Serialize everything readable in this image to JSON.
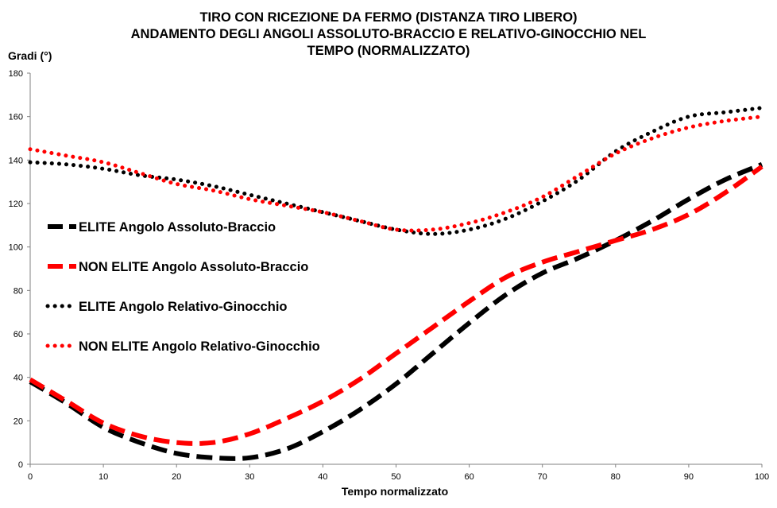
{
  "title_lines": [
    "TIRO CON RICEZIONE DA FERMO (DISTANZA TIRO LIBERO)",
    "ANDAMENTO DEGLI ANGOLI ASSOLUTO-BRACCIO E RELATIVO-GINOCCHIO NEL",
    "TEMPO (NORMALIZZATO)"
  ],
  "chart_data": {
    "type": "line",
    "title": "TIRO CON RICEZIONE DA FERMO (DISTANZA TIRO LIBERO) ANDAMENTO DEGLI ANGOLI ASSOLUTO-BRACCIO E RELATIVO-GINOCCHIO NEL TEMPO (NORMALIZZATO)",
    "xlabel": "Tempo normalizzato",
    "ylabel": "Gradi (°)",
    "xlim": [
      0,
      100
    ],
    "ylim": [
      0,
      180
    ],
    "xticks": [
      0,
      10,
      20,
      30,
      40,
      50,
      60,
      70,
      80,
      90,
      100
    ],
    "yticks": [
      0,
      20,
      40,
      60,
      80,
      100,
      120,
      140,
      160,
      180
    ],
    "grid": "none",
    "legend": "left-middle",
    "x": [
      0,
      5,
      10,
      15,
      20,
      25,
      30,
      35,
      40,
      45,
      50,
      55,
      60,
      65,
      70,
      75,
      80,
      85,
      90,
      95,
      100
    ],
    "series": [
      {
        "name": "ELITE Angolo Assoluto-Braccio",
        "color": "#000000",
        "style": "dashed",
        "values": [
          38,
          28,
          17,
          10,
          5,
          3,
          3,
          7,
          15,
          25,
          37,
          51,
          65,
          78,
          88,
          95,
          103,
          112,
          122,
          131,
          138
        ]
      },
      {
        "name": "NON ELITE Angolo Assoluto-Braccio",
        "color": "#ff0000",
        "style": "dashed",
        "values": [
          39,
          29,
          19,
          13,
          10,
          10,
          14,
          21,
          29,
          39,
          51,
          63,
          75,
          86,
          93,
          98,
          103,
          108,
          115,
          125,
          137
        ]
      },
      {
        "name": "ELITE Angolo Relativo-Ginocchio",
        "color": "#000000",
        "style": "dotted",
        "values": [
          139,
          138,
          136,
          133,
          131,
          128,
          124,
          120,
          116,
          112,
          108,
          106,
          108,
          113,
          121,
          131,
          144,
          153,
          160,
          162,
          164
        ]
      },
      {
        "name": "NON ELITE Angolo Relativo-Ginocchio",
        "color": "#ff0000",
        "style": "dotted",
        "values": [
          145,
          142,
          139,
          134,
          129,
          126,
          122,
          119,
          116,
          112,
          108,
          108,
          111,
          116,
          123,
          133,
          143,
          150,
          155,
          158,
          160
        ]
      }
    ]
  }
}
